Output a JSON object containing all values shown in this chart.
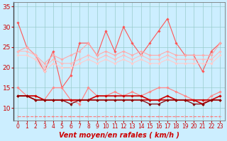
{
  "x": [
    0,
    1,
    2,
    3,
    4,
    5,
    6,
    7,
    8,
    9,
    10,
    11,
    12,
    13,
    14,
    15,
    16,
    17,
    18,
    19,
    20,
    21,
    22,
    23
  ],
  "series": [
    {
      "name": "rafales_max",
      "color": "#ff5555",
      "lw": 0.8,
      "marker": "D",
      "ms": 1.8,
      "linestyle": "-",
      "values": [
        31,
        25,
        23,
        19,
        24,
        15,
        18,
        26,
        26,
        23,
        29,
        24,
        30,
        26,
        23,
        26,
        29,
        32,
        26,
        23,
        23,
        19,
        24,
        26
      ]
    },
    {
      "name": "rafales_upper",
      "color": "#ffaaaa",
      "lw": 0.8,
      "marker": "D",
      "ms": 1.8,
      "linestyle": "-",
      "values": [
        24,
        25,
        23,
        21,
        23,
        22,
        23,
        24,
        26,
        23,
        24,
        23,
        24,
        23,
        24,
        23,
        23,
        24,
        23,
        23,
        23,
        23,
        23,
        26
      ]
    },
    {
      "name": "rafales_mid",
      "color": "#ffbbbb",
      "lw": 0.8,
      "marker": "D",
      "ms": 1.8,
      "linestyle": "-",
      "values": [
        24,
        24,
        23,
        20,
        22,
        21,
        21,
        22,
        23,
        22,
        23,
        22,
        23,
        22,
        23,
        22,
        22,
        23,
        22,
        22,
        22,
        22,
        22,
        24
      ]
    },
    {
      "name": "rafales_lower",
      "color": "#ffcccc",
      "lw": 0.8,
      "marker": "D",
      "ms": 1.8,
      "linestyle": "-",
      "values": [
        23,
        23,
        22,
        19,
        21,
        20,
        20,
        21,
        22,
        21,
        22,
        21,
        22,
        21,
        22,
        21,
        21,
        22,
        21,
        21,
        21,
        21,
        21,
        23
      ]
    },
    {
      "name": "vent_upper",
      "color": "#ff8888",
      "lw": 0.9,
      "marker": "D",
      "ms": 1.8,
      "linestyle": "-",
      "values": [
        15,
        13,
        13,
        12,
        15,
        15,
        12,
        11,
        15,
        13,
        13,
        14,
        13,
        14,
        13,
        14,
        15,
        15,
        14,
        13,
        12,
        11,
        13,
        14
      ]
    },
    {
      "name": "vent_mean_top",
      "color": "#cc0000",
      "lw": 1.2,
      "marker": "D",
      "ms": 1.8,
      "linestyle": "-",
      "values": [
        13,
        13,
        13,
        12,
        12,
        12,
        12,
        12,
        12,
        13,
        13,
        13,
        13,
        13,
        13,
        12,
        12,
        13,
        12,
        12,
        12,
        12,
        12,
        13
      ]
    },
    {
      "name": "vent_mean_bot",
      "color": "#cc0000",
      "lw": 1.2,
      "marker": "D",
      "ms": 1.8,
      "linestyle": "-",
      "values": [
        13,
        13,
        12,
        12,
        12,
        12,
        12,
        12,
        12,
        12,
        12,
        12,
        12,
        12,
        12,
        12,
        12,
        12,
        12,
        12,
        12,
        11,
        12,
        12
      ]
    },
    {
      "name": "vent_lower",
      "color": "#880000",
      "lw": 0.9,
      "marker": "D",
      "ms": 1.8,
      "linestyle": "-",
      "values": [
        13,
        13,
        12,
        12,
        12,
        12,
        11,
        12,
        12,
        12,
        12,
        12,
        12,
        12,
        12,
        11,
        11,
        12,
        12,
        12,
        11,
        11,
        12,
        12
      ]
    },
    {
      "name": "dashed_bottom",
      "color": "#ff7777",
      "lw": 0.8,
      "marker": "4",
      "ms": 3.0,
      "linestyle": "--",
      "values": [
        8,
        8,
        8,
        8,
        8,
        8,
        8,
        8,
        8,
        8,
        8,
        8,
        8,
        8,
        8,
        8,
        8,
        8,
        8,
        8,
        8,
        8,
        8,
        8
      ]
    }
  ],
  "xlabel": "Vent moyen/en rafales ( km/h )",
  "ylim": [
    7,
    36
  ],
  "yticks": [
    10,
    15,
    20,
    25,
    30,
    35
  ],
  "xticks": [
    0,
    1,
    2,
    3,
    4,
    5,
    6,
    7,
    8,
    9,
    10,
    11,
    12,
    13,
    14,
    15,
    16,
    17,
    18,
    19,
    20,
    21,
    22,
    23
  ],
  "bg_color": "#cceeff",
  "grid_color": "#99cccc",
  "tick_color": "#cc0000",
  "label_color": "#cc0000",
  "xlabel_fontsize": 7.0,
  "ytick_fontsize": 6.5,
  "xtick_fontsize": 5.5
}
